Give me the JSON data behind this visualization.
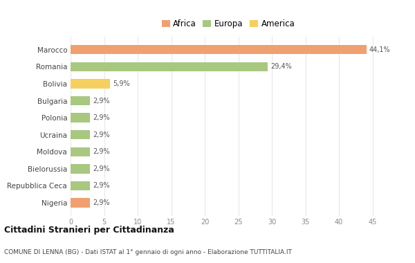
{
  "categories": [
    "Nigeria",
    "Repubblica Ceca",
    "Bielorussia",
    "Moldova",
    "Ucraina",
    "Polonia",
    "Bulgaria",
    "Bolivia",
    "Romania",
    "Marocco"
  ],
  "values": [
    2.9,
    2.9,
    2.9,
    2.9,
    2.9,
    2.9,
    2.9,
    5.9,
    29.4,
    44.1
  ],
  "labels": [
    "2,9%",
    "2,9%",
    "2,9%",
    "2,9%",
    "2,9%",
    "2,9%",
    "2,9%",
    "5,9%",
    "29,4%",
    "44,1%"
  ],
  "colors": [
    "#f0a070",
    "#a8c880",
    "#a8c880",
    "#a8c880",
    "#a8c880",
    "#a8c880",
    "#a8c880",
    "#f5d060",
    "#a8c880",
    "#f0a070"
  ],
  "legend_labels": [
    "Africa",
    "Europa",
    "America"
  ],
  "legend_colors": [
    "#f0a070",
    "#a8c880",
    "#f5d060"
  ],
  "title": "Cittadini Stranieri per Cittadinanza",
  "subtitle": "COMUNE DI LENNA (BG) - Dati ISTAT al 1° gennaio di ogni anno - Elaborazione TUTTITALIA.IT",
  "xlim": [
    0,
    47
  ],
  "xticks": [
    0,
    5,
    10,
    15,
    20,
    25,
    30,
    35,
    40,
    45
  ],
  "bg_color": "#ffffff",
  "grid_color": "#e8e8e8"
}
